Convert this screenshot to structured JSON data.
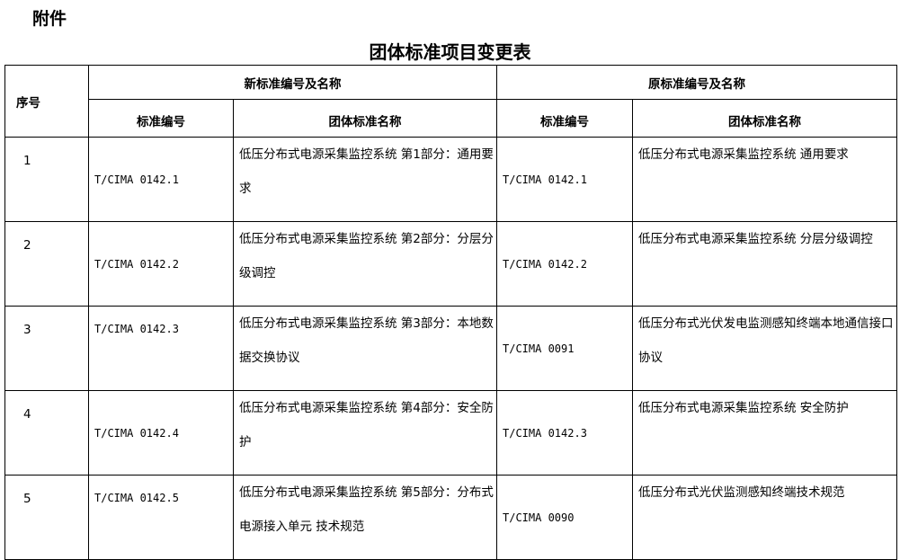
{
  "heading": "附件",
  "title": "团体标准项目变更表",
  "table": {
    "col_seq": "序号",
    "group_new": "新标准编号及名称",
    "group_old": "原标准编号及名称",
    "col_code": "标准编号",
    "col_name": "团体标准名称",
    "rows": [
      {
        "seq": "1",
        "new_code": "T/CIMA 0142.1",
        "new_name": "低压分布式电源采集监控系统 第1部分：通用要求",
        "old_code": "T/CIMA 0142.1",
        "old_name": "低压分布式电源采集监控系统 通用要求"
      },
      {
        "seq": "2",
        "new_code": "T/CIMA 0142.2",
        "new_name": "低压分布式电源采集监控系统 第2部分：分层分级调控",
        "old_code": "T/CIMA 0142.2",
        "old_name": "低压分布式电源采集监控系统 分层分级调控"
      },
      {
        "seq": "3",
        "new_code": "T/CIMA 0142.3",
        "new_name": "低压分布式电源采集监控系统 第3部分：本地数据交换协议",
        "old_code": "T/CIMA 0091",
        "old_name": "低压分布式光伏发电监测感知终端本地通信接口协议"
      },
      {
        "seq": "4",
        "new_code": "T/CIMA 0142.4",
        "new_name": "低压分布式电源采集监控系统 第4部分：安全防护",
        "old_code": "T/CIMA 0142.3",
        "old_name": "低压分布式电源采集监控系统 安全防护"
      },
      {
        "seq": "5",
        "new_code": "T/CIMA 0142.5",
        "new_name": "低压分布式电源采集监控系统 第5部分：分布式电源接入单元 技术规范",
        "old_code": "T/CIMA 0090",
        "old_name": "低压分布式光伏监测感知终端技术规范"
      }
    ]
  }
}
